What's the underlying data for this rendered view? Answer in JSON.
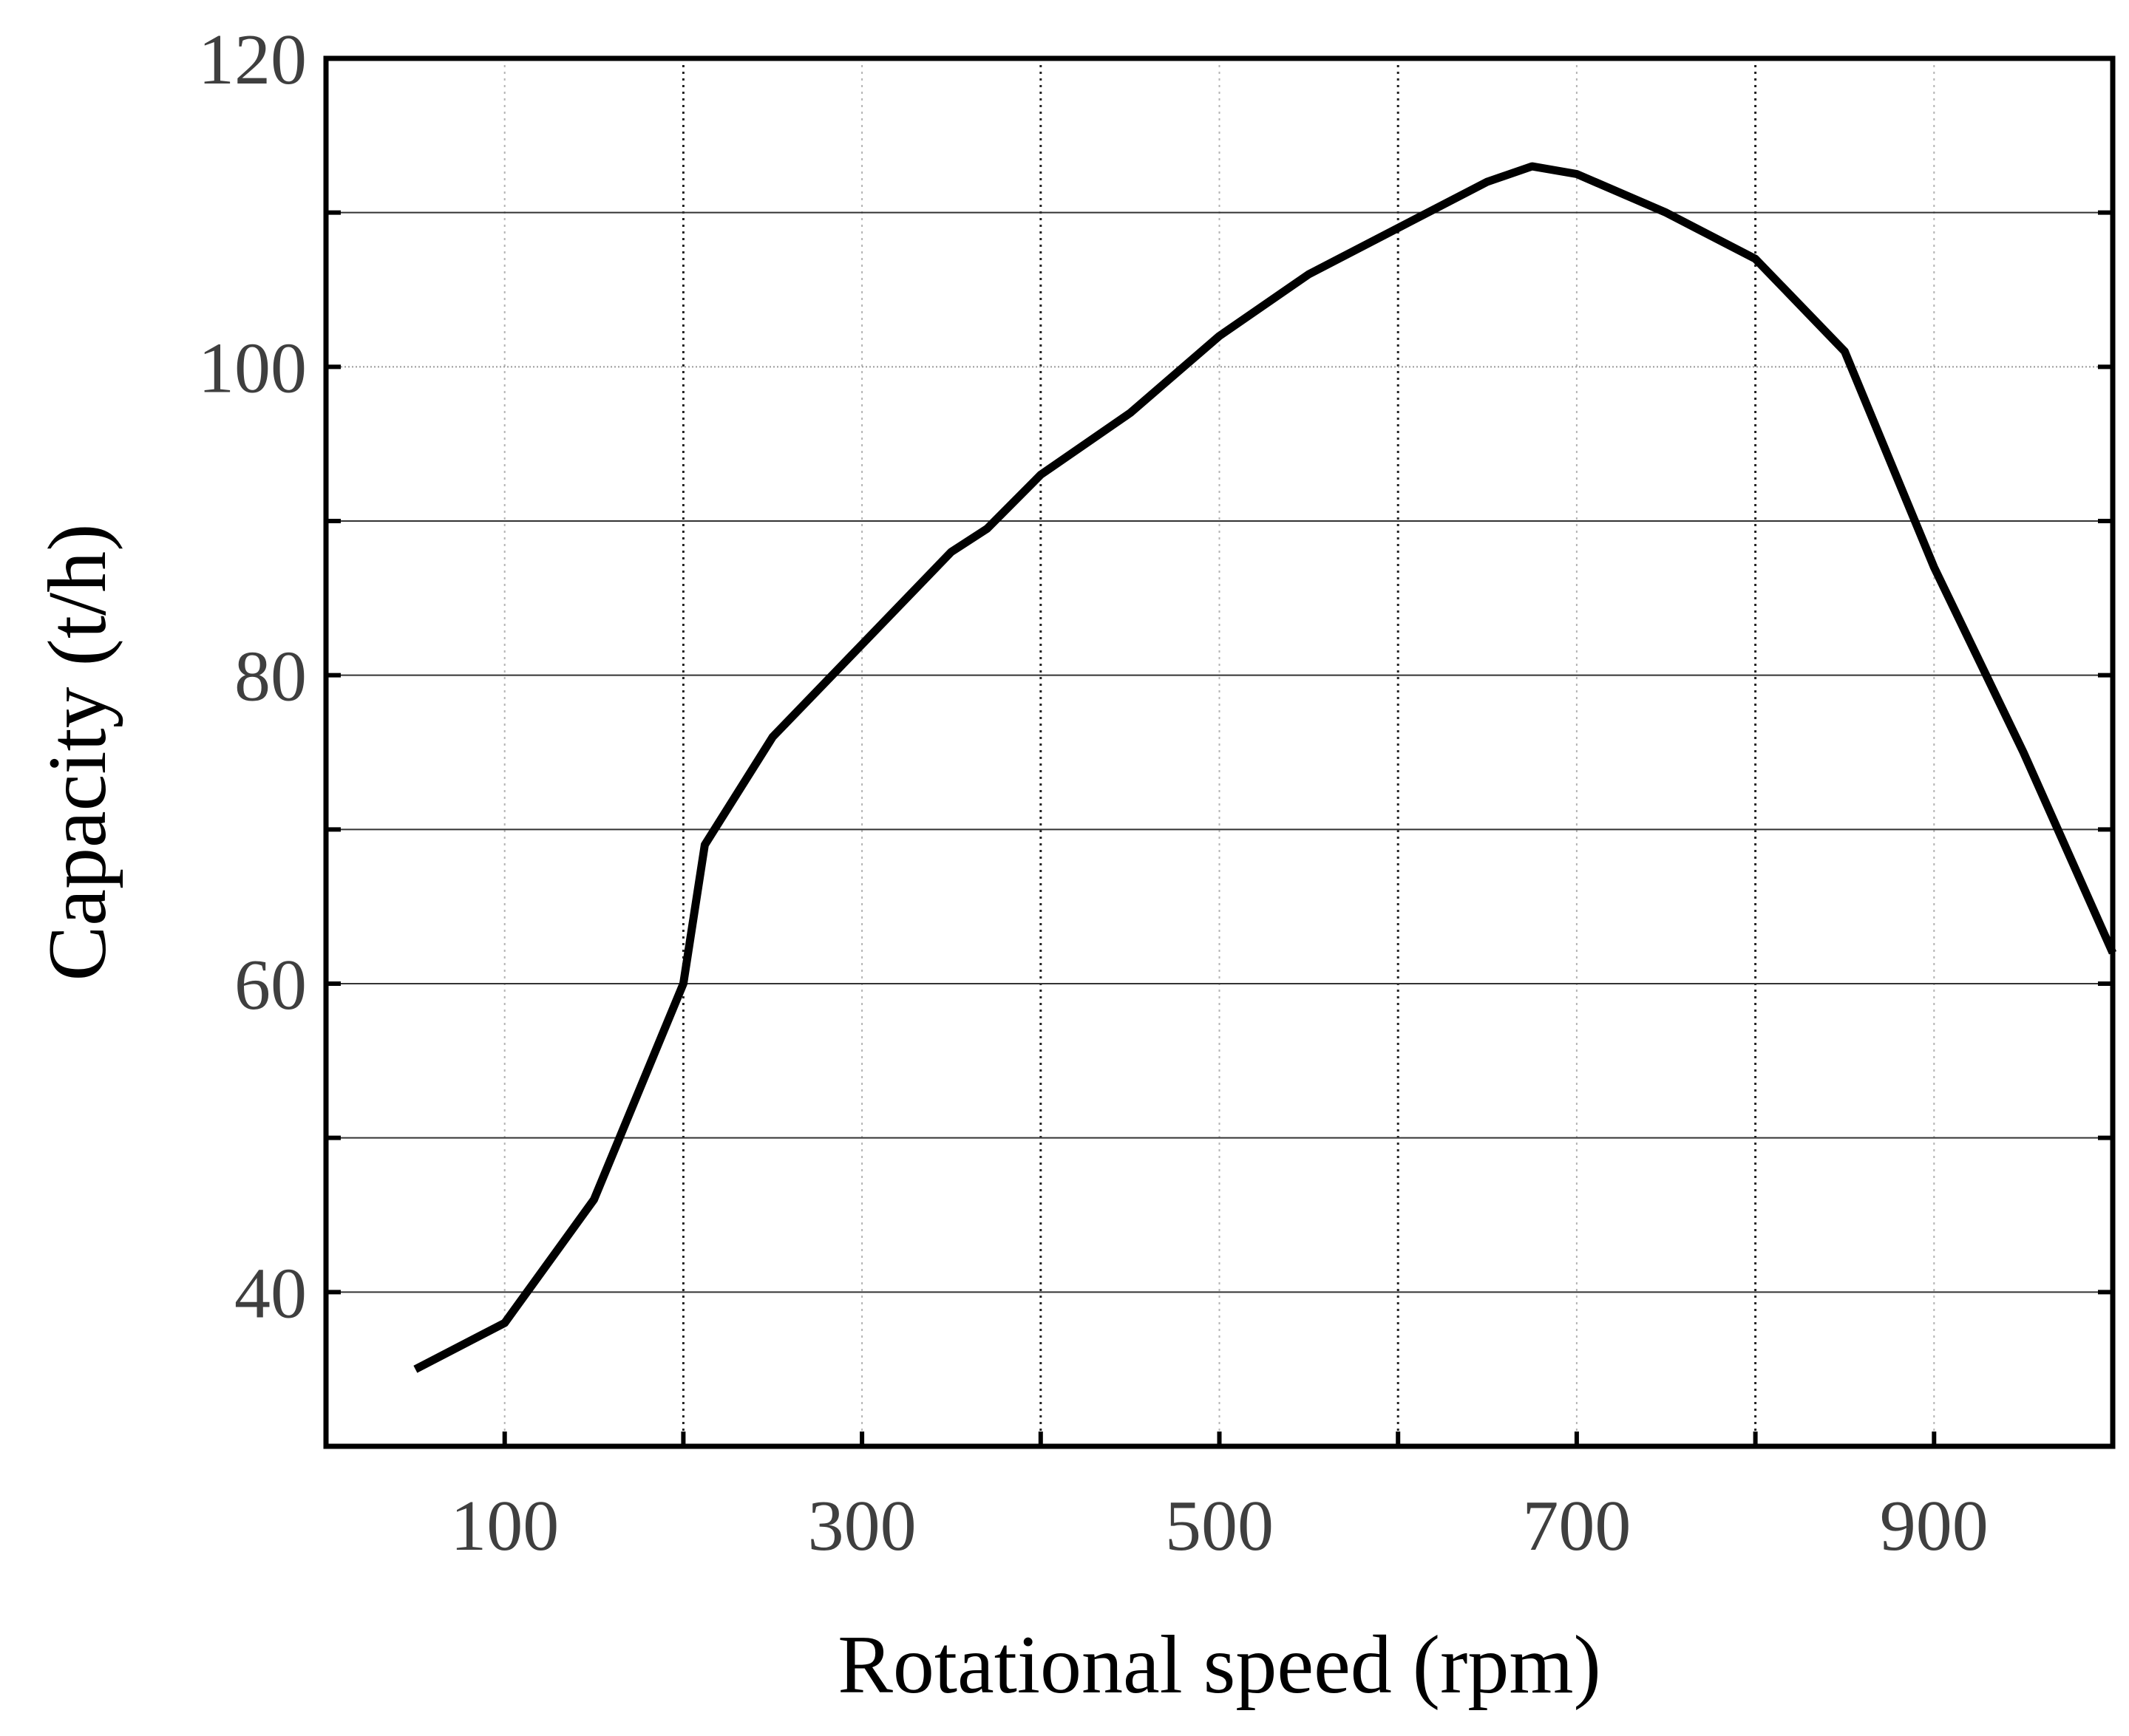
{
  "chart_data": {
    "type": "line",
    "title": "",
    "xlabel": "Rotational speed (rpm)",
    "ylabel": "Capacity (t/h)",
    "xlim": [
      0,
      1000
    ],
    "ylim": [
      30,
      120
    ],
    "x_ticks": [
      100,
      200,
      300,
      400,
      500,
      600,
      700,
      800,
      900
    ],
    "x_tick_labels": [
      "100",
      "300",
      "500",
      "700",
      "900"
    ],
    "x_tick_label_values": [
      100,
      300,
      500,
      700,
      900
    ],
    "y_ticks": [
      40,
      50,
      60,
      70,
      80,
      90,
      100,
      110,
      120
    ],
    "y_tick_labels": [
      "40",
      "60",
      "80",
      "100",
      "120"
    ],
    "y_tick_label_values": [
      40,
      60,
      80,
      100,
      120
    ],
    "grid": true,
    "series": [
      {
        "name": "Capacity",
        "color": "#000000",
        "x": [
          50,
          100,
          150,
          200,
          212,
          250,
          300,
          350,
          370,
          400,
          450,
          500,
          550,
          600,
          650,
          675,
          700,
          750,
          800,
          850,
          900,
          950,
          1000
        ],
        "values": [
          35,
          38,
          46,
          60,
          69,
          76,
          82,
          88,
          89.5,
          93,
          97,
          102,
          106,
          109,
          112,
          113,
          112.5,
          110,
          107,
          101,
          87,
          75,
          62
        ]
      }
    ]
  }
}
